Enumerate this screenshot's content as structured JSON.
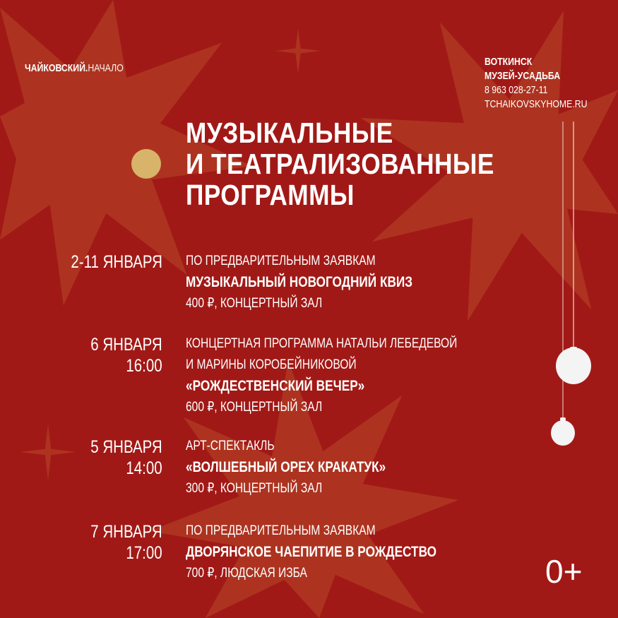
{
  "colors": {
    "background": "#a11916",
    "star": "#ad3320",
    "accent_dot": "#d7b46a",
    "ornament": "#f4f4f4"
  },
  "logo": {
    "bold": "ЧАЙКОВСКИЙ",
    "dot": ".",
    "light": "НАЧАЛО"
  },
  "contact": {
    "city": "ВОТКИНСК",
    "museum": "МУЗЕЙ-УСАДЬБА",
    "phone": "8 963 028-27-11",
    "site": "TCHAIKOVSKYHOME.RU"
  },
  "title": [
    "МУЗЫКАЛЬНЫЕ",
    "И ТЕАТРАЛИЗОВАННЫЕ",
    "ПРОГРАММЫ"
  ],
  "events": [
    {
      "date": "2-11 ЯНВАРЯ",
      "time": "",
      "lines": [
        "ПО ПРЕДВАРИТЕЛЬНЫМ ЗАЯВКАМ"
      ],
      "name": "МУЗЫКАЛЬНЫЙ НОВОГОДНИЙ КВИЗ",
      "info": "400 ₽, КОНЦЕРТНЫЙ ЗАЛ"
    },
    {
      "date": "6 ЯНВАРЯ",
      "time": "16:00",
      "lines": [
        "КОНЦЕРТНАЯ ПРОГРАММА НАТАЛЬИ ЛЕБЕДЕВОЙ",
        "И МАРИНЫ КОРОБЕЙНИКОВОЙ"
      ],
      "name": "«РОЖДЕСТВЕНСКИЙ ВЕЧЕР»",
      "info": "600 ₽, КОНЦЕРТНЫЙ ЗАЛ"
    },
    {
      "date": "5 ЯНВАРЯ",
      "time": "14:00",
      "lines": [
        "АРТ-СПЕКТАКЛЬ"
      ],
      "name": "«ВОЛШЕБНЫЙ ОРЕХ КРАКАТУК»",
      "info": "300 ₽, КОНЦЕРТНЫЙ ЗАЛ"
    },
    {
      "date": "7 ЯНВАРЯ",
      "time": "17:00",
      "lines": [
        "ПО ПРЕДВАРИТЕЛЬНЫМ ЗАЯВКАМ"
      ],
      "name": "ДВОРЯНСКОЕ ЧАЕПИТИЕ В РОЖДЕСТВО",
      "info": "700 ₽, ЛЮДСКАЯ ИЗБА"
    }
  ],
  "age_rating": "0+"
}
